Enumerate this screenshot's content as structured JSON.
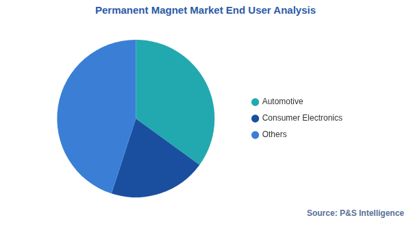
{
  "chart_data": {
    "type": "pie",
    "title": "Permanent Magnet Market End User Analysis",
    "categories": [
      "Automotive",
      "Consumer Electronics",
      "Others"
    ],
    "values": [
      35,
      20,
      45
    ],
    "colors": [
      "#22a9b0",
      "#1a4fa0",
      "#3a7fd5"
    ],
    "legend": "right",
    "source": "Source: P&S Intelligence"
  }
}
